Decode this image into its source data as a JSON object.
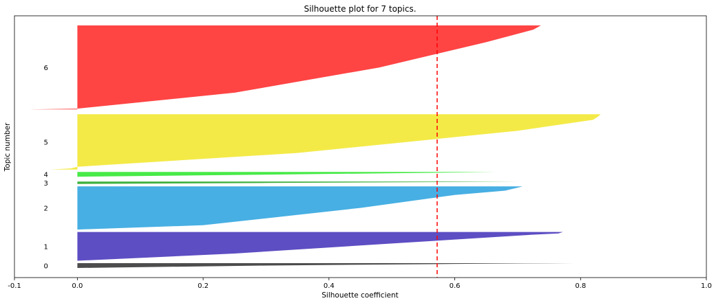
{
  "chart_data": {
    "type": "area",
    "title": "Silhouette plot for 7 topics.",
    "xlabel": "Silhouette coefficient",
    "ylabel": "Topic number",
    "xlim": [
      -0.1,
      1.0
    ],
    "xticks": [
      "-0.1",
      "0.0",
      "0.2",
      "0.4",
      "0.6",
      "0.8",
      "1.0"
    ],
    "xtick_values": [
      -0.1,
      0.0,
      0.2,
      0.4,
      0.6,
      0.8,
      1.0
    ],
    "average_silhouette": 0.572,
    "average_line_color": "#ff0000",
    "grid": false,
    "clusters": [
      {
        "label": "0",
        "color": "#3a3a3a",
        "y_start": 0,
        "y_end": 2,
        "profile": [
          [
            0,
            0.0
          ],
          [
            0.5,
            0.3
          ],
          [
            0.85,
            0.6
          ],
          [
            0.97,
            0.75
          ],
          [
            1,
            0.79
          ]
        ]
      },
      {
        "label": "1",
        "color": "#4b3bbd",
        "y_start": 3,
        "y_end": 15,
        "profile": [
          [
            0,
            0.0
          ],
          [
            0.25,
            0.25
          ],
          [
            0.6,
            0.5
          ],
          [
            0.9,
            0.72
          ],
          [
            0.95,
            0.765
          ],
          [
            1,
            0.772
          ]
        ]
      },
      {
        "label": "2",
        "color": "#33a6e0",
        "y_start": 16,
        "y_end": 34,
        "profile": [
          [
            0,
            0.0
          ],
          [
            0.1,
            0.2
          ],
          [
            0.5,
            0.45
          ],
          [
            0.8,
            0.6
          ],
          [
            0.9,
            0.68
          ],
          [
            0.97,
            0.7
          ],
          [
            1,
            0.708
          ]
        ]
      },
      {
        "label": "3",
        "color": "#2aa82a",
        "y_start": 35,
        "y_end": 36,
        "profile": [
          [
            0,
            0.0
          ],
          [
            0.4,
            0.3
          ],
          [
            0.8,
            0.6
          ],
          [
            1,
            0.703
          ]
        ]
      },
      {
        "label": "4",
        "color": "#33e833",
        "y_start": 38,
        "y_end": 40,
        "profile": [
          [
            0,
            0.0
          ],
          [
            0.4,
            0.28
          ],
          [
            0.8,
            0.55
          ],
          [
            1,
            0.666
          ]
        ]
      },
      {
        "label": "5",
        "color": "#f2e833",
        "y_start": 41,
        "y_end": 64,
        "profile": [
          [
            0,
            -0.042
          ],
          [
            0.02,
            -0.01
          ],
          [
            0.05,
            0.0
          ],
          [
            0.3,
            0.35
          ],
          [
            0.7,
            0.7
          ],
          [
            0.9,
            0.82
          ],
          [
            0.96,
            0.828
          ],
          [
            1,
            0.832
          ]
        ]
      },
      {
        "label": "6",
        "color": "#ff3030",
        "y_start": 66,
        "y_end": 101,
        "profile": [
          [
            0,
            -0.076
          ],
          [
            0.01,
            0.0
          ],
          [
            0.2,
            0.25
          ],
          [
            0.5,
            0.48
          ],
          [
            0.8,
            0.65
          ],
          [
            0.95,
            0.725
          ],
          [
            1,
            0.737
          ]
        ]
      }
    ]
  }
}
